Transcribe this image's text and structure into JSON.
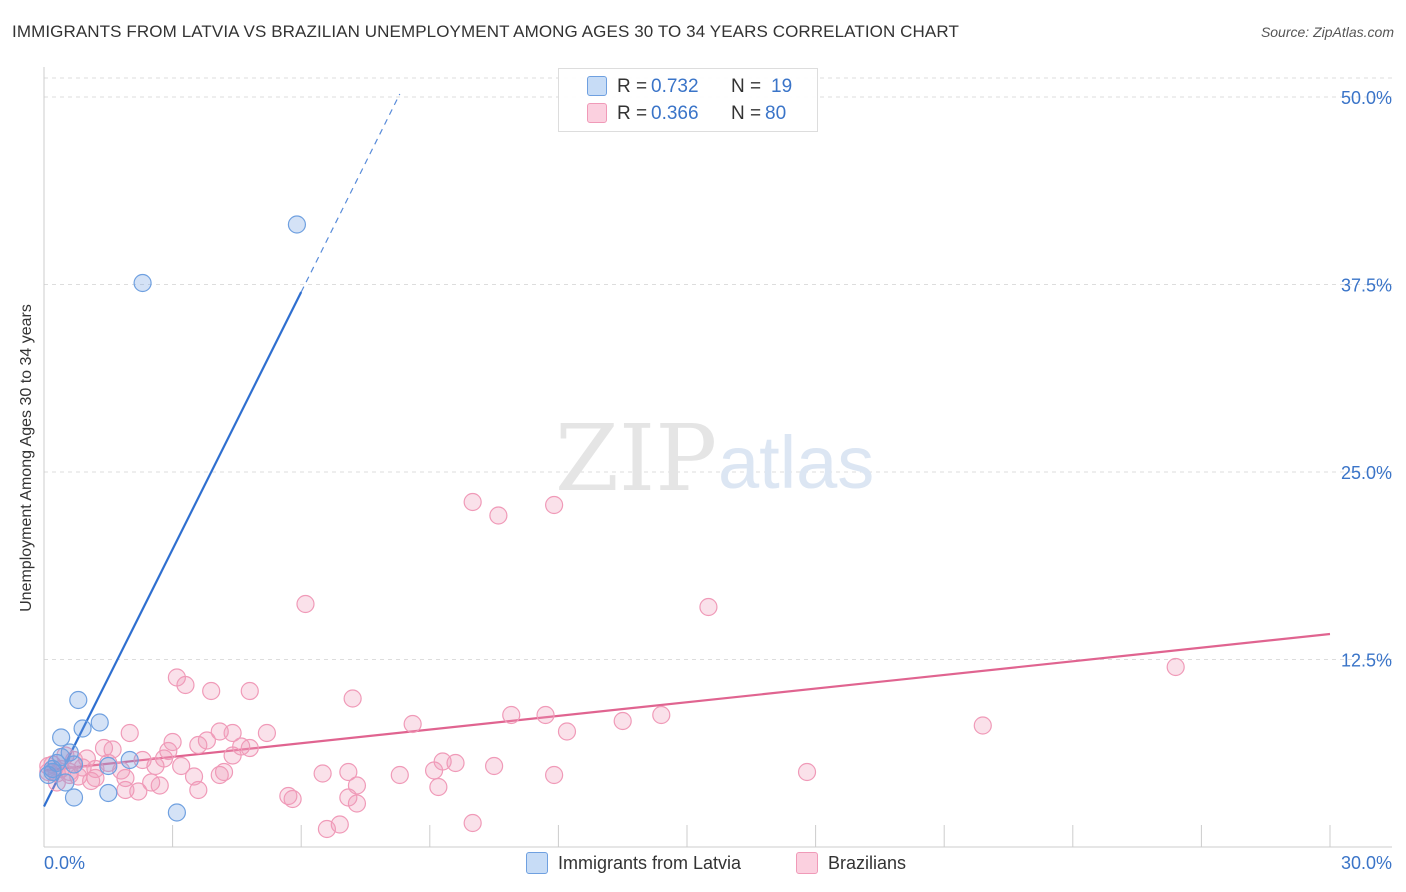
{
  "header": {
    "title": "IMMIGRANTS FROM LATVIA VS BRAZILIAN UNEMPLOYMENT AMONG AGES 30 TO 34 YEARS CORRELATION CHART",
    "source": "Source: ZipAtlas.com"
  },
  "watermark": {
    "zip": "ZIP",
    "atlas": "atlas"
  },
  "legend_top": {
    "rows": [
      {
        "r_label": "R = ",
        "r_value": "0.732",
        "n_label": "N = ",
        "n_value": "19"
      },
      {
        "r_label": "R = ",
        "r_value": "0.366",
        "n_label": "N = ",
        "n_value": "80"
      }
    ]
  },
  "chart_data": {
    "type": "scatter",
    "title": "IMMIGRANTS FROM LATVIA VS BRAZILIAN UNEMPLOYMENT AMONG AGES 30 TO 34 YEARS CORRELATION CHART",
    "xlabel": "",
    "ylabel": "Unemployment Among Ages 30 to 34 years",
    "xlim": [
      0,
      30
    ],
    "ylim": [
      0,
      52
    ],
    "x_tick_labels": [
      "0.0%",
      "30.0%"
    ],
    "y_ticks": [
      12.5,
      25.0,
      37.5,
      50.0
    ],
    "y_tick_labels": [
      "12.5%",
      "25.0%",
      "37.5%",
      "50.0%"
    ],
    "grid": true,
    "legend_position": "bottom-center",
    "colors": {
      "latvia": "#6fa0e0",
      "latvia_line": "#2f6fd0",
      "brazil": "#f09ab8",
      "brazil_line": "#e06490",
      "axis_text": "#3a74c8"
    },
    "series": [
      {
        "name": "Immigrants from Latvia",
        "R": 0.732,
        "N": 19,
        "points": [
          [
            5.9,
            41.5
          ],
          [
            2.3,
            37.6
          ],
          [
            0.8,
            9.8
          ],
          [
            1.3,
            8.3
          ],
          [
            0.9,
            7.9
          ],
          [
            0.4,
            7.3
          ],
          [
            0.6,
            6.3
          ],
          [
            0.4,
            6.0
          ],
          [
            2.0,
            5.8
          ],
          [
            0.3,
            5.6
          ],
          [
            0.7,
            5.5
          ],
          [
            1.5,
            5.4
          ],
          [
            0.2,
            5.2
          ],
          [
            0.1,
            4.8
          ],
          [
            0.5,
            4.3
          ],
          [
            1.5,
            3.6
          ],
          [
            0.7,
            3.3
          ],
          [
            3.1,
            2.3
          ],
          [
            0.2,
            5.0
          ]
        ],
        "trend": {
          "x0": 0.0,
          "y0": 2.7,
          "x1": 6.0,
          "y1": 37.0,
          "dashed_to_x": 8.3,
          "dashed_to_y": 50.2
        }
      },
      {
        "name": "Brazilians",
        "R": 0.366,
        "N": 80,
        "points": [
          [
            10.0,
            23.0
          ],
          [
            11.9,
            22.8
          ],
          [
            10.6,
            22.1
          ],
          [
            15.5,
            16.0
          ],
          [
            6.1,
            16.2
          ],
          [
            26.4,
            12.0
          ],
          [
            3.1,
            11.3
          ],
          [
            3.3,
            10.8
          ],
          [
            3.9,
            10.4
          ],
          [
            4.8,
            10.4
          ],
          [
            7.2,
            9.9
          ],
          [
            10.9,
            8.8
          ],
          [
            11.7,
            8.8
          ],
          [
            14.4,
            8.8
          ],
          [
            13.5,
            8.4
          ],
          [
            8.6,
            8.2
          ],
          [
            21.9,
            8.1
          ],
          [
            12.2,
            7.7
          ],
          [
            4.1,
            7.7
          ],
          [
            4.4,
            7.6
          ],
          [
            5.2,
            7.6
          ],
          [
            2.0,
            7.6
          ],
          [
            3.8,
            7.1
          ],
          [
            3.0,
            7.0
          ],
          [
            3.6,
            6.8
          ],
          [
            4.6,
            6.7
          ],
          [
            1.4,
            6.6
          ],
          [
            2.9,
            6.4
          ],
          [
            4.4,
            6.1
          ],
          [
            9.3,
            5.7
          ],
          [
            9.6,
            5.6
          ],
          [
            2.3,
            5.8
          ],
          [
            1.5,
            5.6
          ],
          [
            1.0,
            5.9
          ],
          [
            0.9,
            5.3
          ],
          [
            2.6,
            5.4
          ],
          [
            3.2,
            5.4
          ],
          [
            1.8,
            5.1
          ],
          [
            1.2,
            5.2
          ],
          [
            0.6,
            5.0
          ],
          [
            0.4,
            5.2
          ],
          [
            0.2,
            5.5
          ],
          [
            10.5,
            5.4
          ],
          [
            9.1,
            5.1
          ],
          [
            17.8,
            5.0
          ],
          [
            6.5,
            4.9
          ],
          [
            7.1,
            5.0
          ],
          [
            8.3,
            4.8
          ],
          [
            11.9,
            4.8
          ],
          [
            3.5,
            4.7
          ],
          [
            4.1,
            4.8
          ],
          [
            1.9,
            4.6
          ],
          [
            2.5,
            4.3
          ],
          [
            1.1,
            4.4
          ],
          [
            0.3,
            4.3
          ],
          [
            0.8,
            4.7
          ],
          [
            2.7,
            4.1
          ],
          [
            7.3,
            4.1
          ],
          [
            9.2,
            4.0
          ],
          [
            2.2,
            3.7
          ],
          [
            3.6,
            3.8
          ],
          [
            1.9,
            3.8
          ],
          [
            5.7,
            3.4
          ],
          [
            5.8,
            3.2
          ],
          [
            7.1,
            3.3
          ],
          [
            7.3,
            2.9
          ],
          [
            10.0,
            1.6
          ],
          [
            6.9,
            1.5
          ],
          [
            6.6,
            1.2
          ],
          [
            0.1,
            5.0
          ],
          [
            0.1,
            5.4
          ],
          [
            0.5,
            6.1
          ],
          [
            1.6,
            6.5
          ],
          [
            2.8,
            5.9
          ],
          [
            4.2,
            5.0
          ],
          [
            4.8,
            6.6
          ],
          [
            0.6,
            4.8
          ],
          [
            1.2,
            4.6
          ],
          [
            0.3,
            4.9
          ],
          [
            0.7,
            5.8
          ]
        ],
        "trend": {
          "x0": 0.0,
          "y0": 5.1,
          "x1": 30.0,
          "y1": 14.2
        }
      }
    ]
  },
  "legend_bottom": {
    "items": [
      "Immigrants from Latvia",
      "Brazilians"
    ]
  }
}
